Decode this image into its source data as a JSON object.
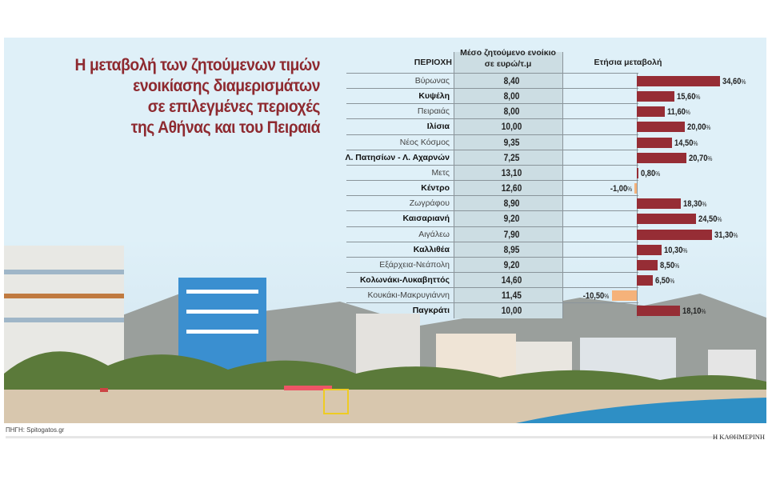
{
  "title": "Η μεταβολή των ζητούμενων τιμών ενοικίασης διαμερισμάτων σε επιλεγμένες περιοχές της Αθήνας και του Πειραιά",
  "title_lines": [
    "Η μεταβολή των ζητούμενων τιμών",
    "ενοικίασης διαμερισμάτων",
    "σε επιλεγμένες περιοχές",
    "της Αθήνας και του Πειραιά"
  ],
  "colors": {
    "positive": "#962d35",
    "negative": "#f5b27a",
    "title": "#8e2a30",
    "panel": "#dff0f8",
    "value_column": "#ccdde3"
  },
  "chart_data": {
    "type": "table",
    "columns": [
      "ΠΕΡΙΟΧΗ",
      "Μέσο ζητούμενο ενοίκιο σε ευρώ/τ.μ",
      "Ετήσια μεταβολή"
    ],
    "column_header_lines": [
      "Μέσο ζητούμενο ενοίκιο",
      "σε ευρώ/τ.μ"
    ],
    "unit": "%",
    "rows": [
      {
        "area": "Βύρωνας",
        "bold": false,
        "rent": "8,40",
        "change": 34.6,
        "change_label": "34,60"
      },
      {
        "area": "Κυψέλη",
        "bold": true,
        "rent": "8,00",
        "change": 15.6,
        "change_label": "15,60"
      },
      {
        "area": "Πειραιάς",
        "bold": false,
        "rent": "8,00",
        "change": 11.6,
        "change_label": "11,60"
      },
      {
        "area": "Ιλίσια",
        "bold": true,
        "rent": "10,00",
        "change": 20.0,
        "change_label": "20,00"
      },
      {
        "area": "Νέος Κόσμος",
        "bold": false,
        "rent": "9,35",
        "change": 14.5,
        "change_label": "14,50"
      },
      {
        "area": "Λ. Πατησίων - Λ. Αχαρνών",
        "bold": true,
        "rent": "7,25",
        "change": 20.7,
        "change_label": "20,70"
      },
      {
        "area": "Μετς",
        "bold": false,
        "rent": "13,10",
        "change": 0.8,
        "change_label": "0,80"
      },
      {
        "area": "Κέντρο",
        "bold": true,
        "rent": "12,60",
        "change": -1.0,
        "change_label": "-1,00"
      },
      {
        "area": "Ζωγράφου",
        "bold": false,
        "rent": "8,90",
        "change": 18.3,
        "change_label": "18,30"
      },
      {
        "area": "Καισαριανή",
        "bold": true,
        "rent": "9,20",
        "change": 24.5,
        "change_label": "24,50"
      },
      {
        "area": "Αιγάλεω",
        "bold": false,
        "rent": "7,90",
        "change": 31.3,
        "change_label": "31,30"
      },
      {
        "area": "Καλλιθέα",
        "bold": true,
        "rent": "8,95",
        "change": 10.3,
        "change_label": "10,30"
      },
      {
        "area": "Εξάρχεια-Νεάπολη",
        "bold": false,
        "rent": "9,20",
        "change": 8.5,
        "change_label": "8,50"
      },
      {
        "area": "Κολωνάκι-Λυκαβηττός",
        "bold": true,
        "rent": "14,60",
        "change": 6.5,
        "change_label": "6,50"
      },
      {
        "area": "Κουκάκι-Μακρυγιάννη",
        "bold": false,
        "rent": "11,45",
        "change": -10.5,
        "change_label": "-10,50"
      },
      {
        "area": "Παγκράτι",
        "bold": true,
        "rent": "10,00",
        "change": 18.1,
        "change_label": "18,10"
      }
    ]
  },
  "footer": {
    "source": "ΠΗΓΗ: Spitogatos.gr",
    "brand": "Η ΚΑΘΗΜΕΡΙΝΗ"
  }
}
